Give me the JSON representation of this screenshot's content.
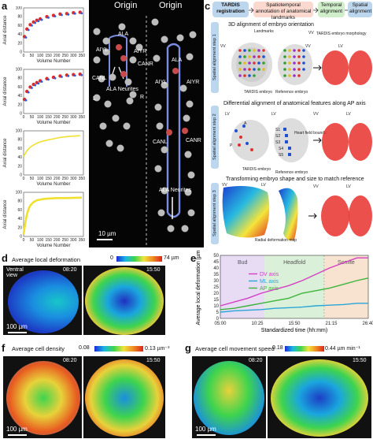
{
  "panel_letters": {
    "a": "a",
    "b": "b",
    "c": "c",
    "d": "d",
    "e": "e",
    "f": "f",
    "g": "g"
  },
  "panel_a": {
    "ylabel": "Axial distance",
    "xlabel": "Volume Number",
    "xticks": [
      "0",
      "50",
      "100",
      "150",
      "200",
      "250",
      "300",
      "350"
    ],
    "yticks": [
      "0",
      "20",
      "40",
      "60",
      "80",
      "100"
    ]
  },
  "panel_b": {
    "title_left": "Origin",
    "title_right": "Origin",
    "labels_left": {
      "ala": "ALA",
      "aiyl": "AIYL",
      "aiyr": "AIYR",
      "canr": "CANR",
      "canl": "CANL",
      "neurites": "ALA Neurites",
      "l": "L",
      "r": "R"
    },
    "labels_right": {
      "ala": "ALA",
      "aiyl": "AIYL",
      "aiyr": "AIYR",
      "canl": "CANL",
      "canr": "CANR",
      "neurites": "ALA Neurites"
    },
    "scale": "10 µm"
  },
  "panel_c": {
    "flow": [
      "TARDIS registration",
      "Spatiotemporal annotation of anatomical landmarks",
      "Temporal alignment",
      "Spatial alignment"
    ],
    "step1": {
      "side": "Spatial alignment step 1",
      "title": "3D alignment of embryo orientation",
      "landmarks": "Landmarks",
      "tardis": "TARDIS embryo",
      "reference": "Reference embryo",
      "morph": "TARDIS embryo morphology",
      "vv": "VV",
      "lv": "LV"
    },
    "step2": {
      "side": "Spatial alignment step 2",
      "title": "Differential alignment of anatomical features along AP axis",
      "heart": "Heart field bounds",
      "tardis": "TARDIS embryo",
      "reference": "Reference embryo",
      "s": [
        "S1",
        "S2",
        "S3",
        "S4",
        "S5"
      ],
      "p": "P",
      "a": "A",
      "lv": "LV",
      "vv": "VV"
    },
    "step3": {
      "side": "Spatial alignment step 3",
      "title": "Transforming embryo shape and size to match reference",
      "radial": "Radial deformation map",
      "vv": "VV",
      "lv": "LV"
    }
  },
  "panel_d": {
    "title": "Average local deformation",
    "cb_min": "0",
    "cb_max": "74 µm",
    "view": "Ventral view",
    "t1": "08:20",
    "t2": "15:50",
    "scale": "100 µm"
  },
  "panel_f": {
    "title": "Average cell density",
    "cb_min": "0.08",
    "cb_max": "0.13 µm⁻³",
    "t1": "08:20",
    "t2": "15:50",
    "scale": "100 µm"
  },
  "panel_g": {
    "title": "Average cell movement speed",
    "cb_min": "0.18",
    "cb_max": "0.44 µm min⁻¹",
    "t1": "08:20",
    "t2": "15:50",
    "scale": "100 µm"
  },
  "chart_data": [
    {
      "type": "scatter",
      "panel": "a1",
      "title": "",
      "xlabel": "Volume Number",
      "ylabel": "Axial distance",
      "xlim": [
        0,
        360
      ],
      "ylim": [
        0,
        100
      ],
      "series": [
        {
          "values": [
            [
              5,
              35
            ],
            [
              20,
              52
            ],
            [
              40,
              62
            ],
            [
              60,
              68
            ],
            [
              80,
              72
            ],
            [
              100,
              75
            ],
            [
              140,
              80
            ],
            [
              180,
              83
            ],
            [
              220,
              86
            ],
            [
              260,
              87
            ],
            [
              300,
              89
            ],
            [
              340,
              90
            ]
          ]
        }
      ]
    },
    {
      "type": "scatter",
      "panel": "a2",
      "title": "",
      "xlabel": "Volume Number",
      "ylabel": "Axial distance",
      "xlim": [
        0,
        360
      ],
      "ylim": [
        0,
        100
      ],
      "series": [
        {
          "values": [
            [
              5,
              32
            ],
            [
              20,
              50
            ],
            [
              40,
              60
            ],
            [
              60,
              66
            ],
            [
              80,
              70
            ],
            [
              100,
              74
            ],
            [
              140,
              79
            ],
            [
              180,
              82
            ],
            [
              220,
              85
            ],
            [
              260,
              87
            ],
            [
              300,
              88
            ],
            [
              340,
              89
            ]
          ]
        }
      ]
    },
    {
      "type": "line",
      "panel": "a3",
      "title": "",
      "xlabel": "Volume Number",
      "ylabel": "Axial distance",
      "xlim": [
        0,
        360
      ],
      "ylim": [
        0,
        100
      ],
      "series": [
        {
          "values": [
            [
              0,
              42
            ],
            [
              20,
              55
            ],
            [
              40,
              63
            ],
            [
              60,
              68
            ],
            [
              80,
              72
            ],
            [
              100,
              75
            ],
            [
              140,
              79
            ],
            [
              180,
              82
            ],
            [
              220,
              85
            ],
            [
              260,
              87
            ],
            [
              300,
              88
            ],
            [
              340,
              89
            ]
          ]
        }
      ]
    },
    {
      "type": "line",
      "panel": "a4",
      "title": "",
      "xlabel": "Volume Number",
      "ylabel": "Axial distance",
      "xlim": [
        0,
        360
      ],
      "ylim": [
        0,
        100
      ],
      "series": [
        {
          "values": [
            [
              0,
              5
            ],
            [
              10,
              30
            ],
            [
              20,
              50
            ],
            [
              30,
              62
            ],
            [
              40,
              70
            ],
            [
              60,
              78
            ],
            [
              80,
              82
            ],
            [
              120,
              85
            ],
            [
              160,
              86
            ],
            [
              200,
              87
            ],
            [
              260,
              87
            ],
            [
              350,
              88
            ]
          ]
        }
      ]
    },
    {
      "type": "line",
      "panel": "e",
      "title": "",
      "xlabel": "Standardized time (hh:mm)",
      "ylabel": "Average local deformation [µm]",
      "x": [
        "05:00",
        "10:25",
        "15:50",
        "21:15",
        "26:40"
      ],
      "ylim": [
        0,
        50
      ],
      "yticks": [
        0,
        5,
        10,
        15,
        20,
        25,
        30,
        35,
        40,
        45,
        50
      ],
      "stages": [
        {
          "name": "Bud",
          "color": "#e7dcf3"
        },
        {
          "name": "Headfold",
          "color": "#dbf0d8"
        },
        {
          "name": "Somite",
          "color": "#f7e3cf"
        }
      ],
      "series": [
        {
          "name": "DV axis",
          "color": "#d43fc4",
          "values": [
            [
              0,
              10
            ],
            [
              2,
              13
            ],
            [
              4,
              16
            ],
            [
              6,
              20
            ],
            [
              8,
              23
            ],
            [
              10,
              26
            ],
            [
              12,
              30
            ],
            [
              14,
              35
            ],
            [
              16,
              40
            ],
            [
              18,
              44
            ],
            [
              20,
              48
            ],
            [
              21.67,
              48
            ]
          ]
        },
        {
          "name": "ML axis",
          "color": "#2aa5d8",
          "values": [
            [
              0,
              5
            ],
            [
              2,
              6
            ],
            [
              4,
              6.5
            ],
            [
              6,
              7
            ],
            [
              8,
              8
            ],
            [
              10,
              8.5
            ],
            [
              12,
              9
            ],
            [
              14,
              10
            ],
            [
              16,
              10.5
            ],
            [
              18,
              11
            ],
            [
              20,
              12
            ],
            [
              21.67,
              12
            ]
          ]
        },
        {
          "name": "AP axis",
          "color": "#3cb43c",
          "values": [
            [
              0,
              7
            ],
            [
              2,
              8
            ],
            [
              4,
              10
            ],
            [
              6,
              12
            ],
            [
              8,
              14
            ],
            [
              10,
              16
            ],
            [
              12,
              20
            ],
            [
              14,
              22
            ],
            [
              16,
              24
            ],
            [
              18,
              27
            ],
            [
              20,
              30
            ],
            [
              21.67,
              32
            ]
          ]
        }
      ]
    }
  ]
}
